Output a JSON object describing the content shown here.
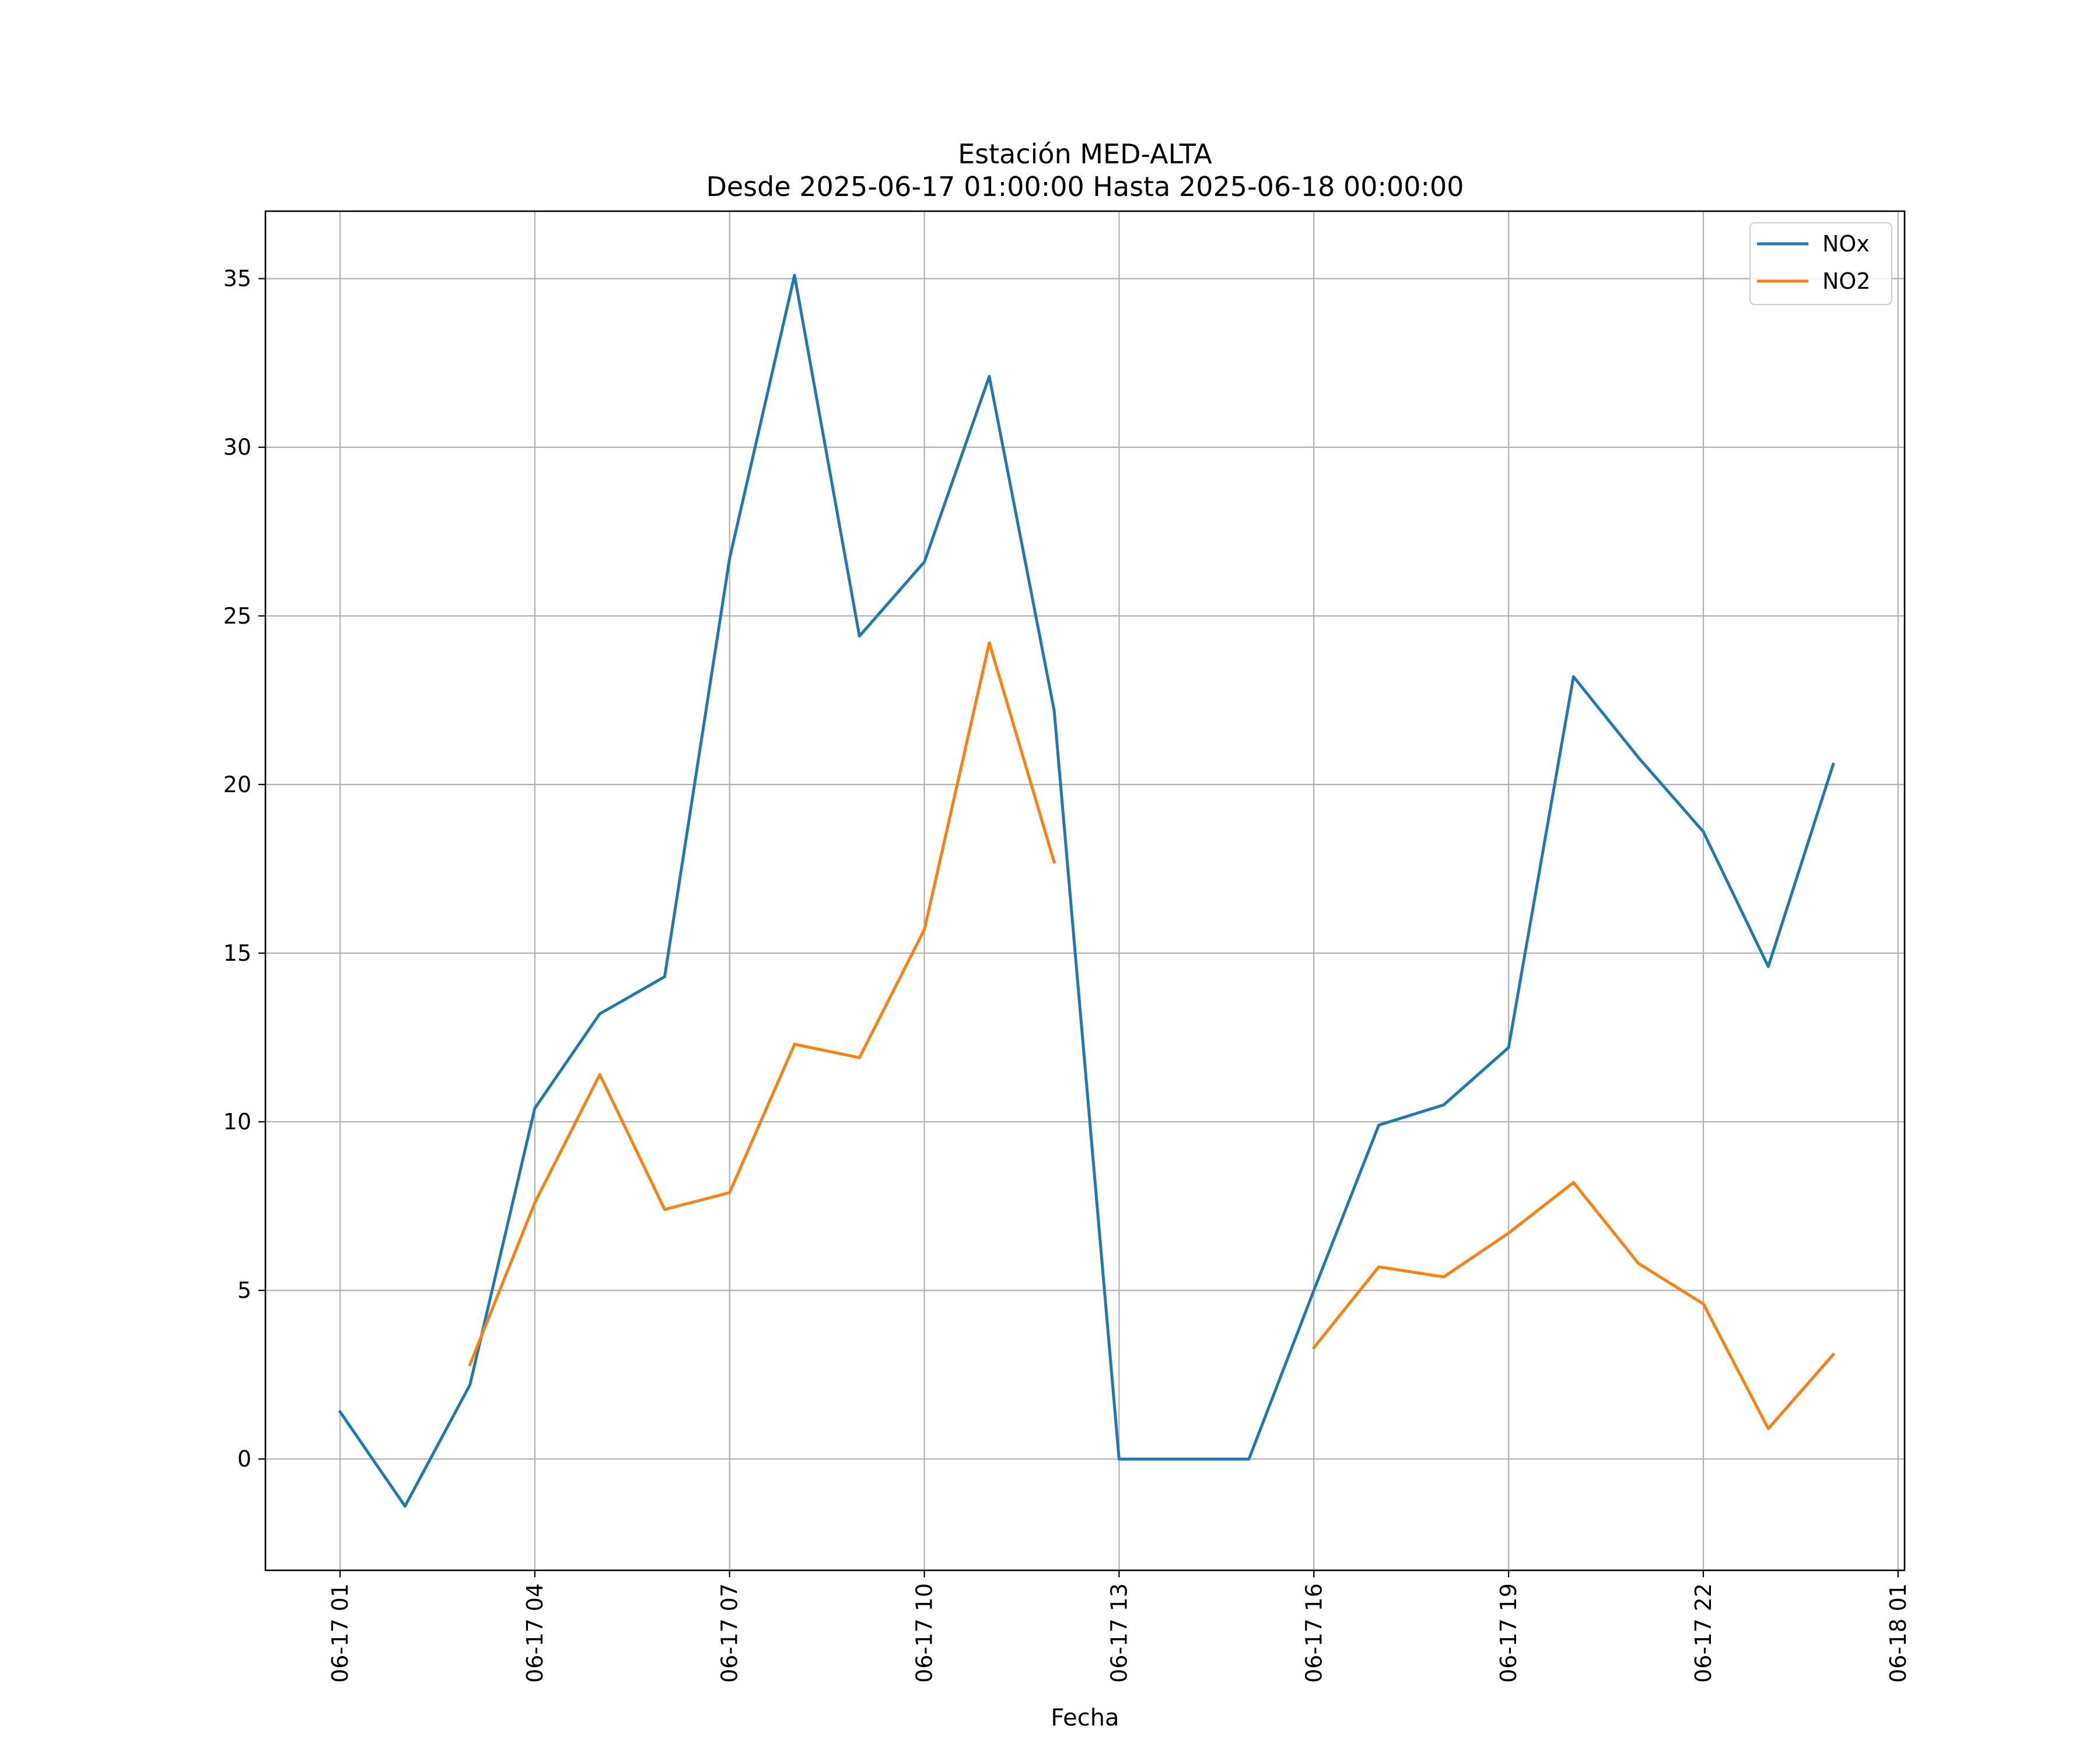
{
  "chart_data": {
    "type": "line",
    "title": "Estación MED-ALTA",
    "subtitle": "Desde 2025-06-17 01:00:00 Hasta 2025-06-18 00:00:00",
    "xlabel": "Fecha",
    "ylabel": "",
    "x_ticks": [
      "06-17 01",
      "06-17 04",
      "06-17 07",
      "06-17 10",
      "06-17 13",
      "06-17 16",
      "06-17 19",
      "06-17 22",
      "06-18 01"
    ],
    "x_tick_hours": [
      1,
      4,
      7,
      10,
      13,
      16,
      19,
      22,
      25
    ],
    "x": [
      "06-17 01",
      "06-17 02",
      "06-17 03",
      "06-17 04",
      "06-17 05",
      "06-17 06",
      "06-17 07",
      "06-17 08",
      "06-17 09",
      "06-17 10",
      "06-17 11",
      "06-17 12",
      "06-17 13",
      "06-17 14",
      "06-17 15",
      "06-17 16",
      "06-17 17",
      "06-17 18",
      "06-17 19",
      "06-17 20",
      "06-17 21",
      "06-17 22",
      "06-17 23",
      "06-18 00"
    ],
    "x_hours": [
      1,
      2,
      3,
      4,
      5,
      6,
      7,
      8,
      9,
      10,
      11,
      12,
      13,
      14,
      15,
      16,
      17,
      18,
      19,
      20,
      21,
      22,
      23,
      24
    ],
    "y_ticks": [
      "0",
      "5",
      "10",
      "15",
      "20",
      "25",
      "30",
      "35"
    ],
    "y_tick_values": [
      0,
      5,
      10,
      15,
      20,
      25,
      30,
      35
    ],
    "xlim": [
      -0.15,
      25.1
    ],
    "ylim": [
      -3.3,
      37.0
    ],
    "grid": true,
    "legend_position": "top-right",
    "series": [
      {
        "name": "NOx",
        "color": "#1f77b4",
        "values": [
          1.4,
          -1.4,
          2.2,
          10.4,
          13.2,
          14.3,
          26.7,
          35.1,
          24.4,
          26.6,
          32.1,
          22.2,
          0.0,
          0.0,
          0.0,
          5.0,
          9.9,
          10.5,
          12.2,
          23.2,
          20.8,
          18.6,
          14.6,
          20.6
        ]
      },
      {
        "name": "NO2",
        "color": "#ff7f0e",
        "values": [
          null,
          null,
          2.8,
          7.6,
          11.4,
          7.4,
          7.9,
          12.3,
          11.9,
          15.7,
          24.2,
          17.7,
          null,
          null,
          null,
          3.3,
          5.7,
          5.4,
          6.7,
          8.2,
          5.8,
          4.6,
          0.9,
          3.1
        ]
      }
    ]
  }
}
